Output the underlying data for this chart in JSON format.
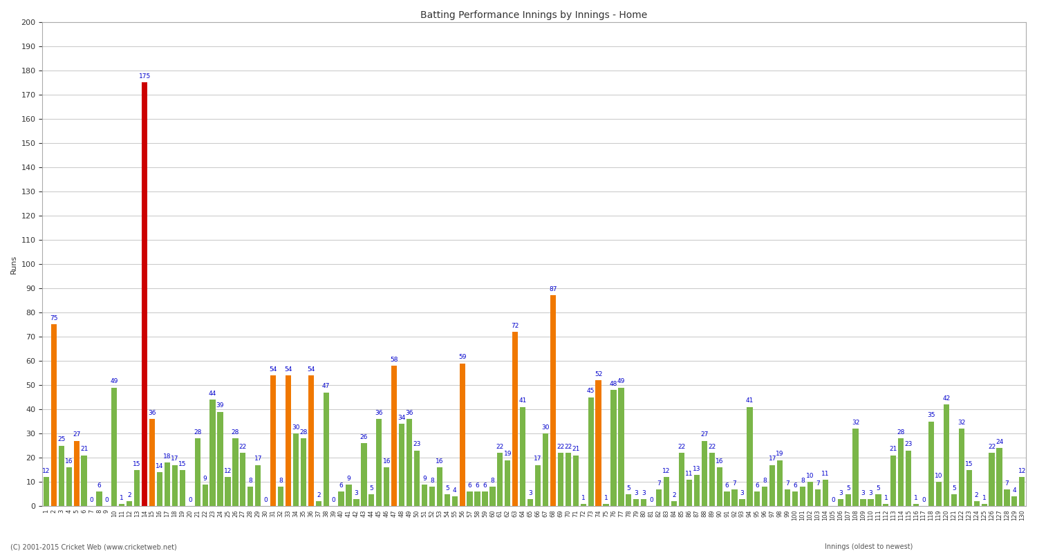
{
  "title": "Batting Performance Innings by Innings - Home",
  "ylabel": "Runs",
  "xlabel": "Innings (oldest to newest)",
  "footer": "(C) 2001-2015 Cricket Web (www.cricketweb.net)",
  "ylim": [
    0,
    200
  ],
  "yticks": [
    0,
    10,
    20,
    30,
    40,
    50,
    60,
    70,
    80,
    90,
    100,
    110,
    120,
    130,
    140,
    150,
    160,
    170,
    180,
    190,
    200
  ],
  "bar_data": [
    {
      "val": 12,
      "color": "#7ab648",
      "label": "12"
    },
    {
      "val": 75,
      "color": "#f07800",
      "label": "75"
    },
    {
      "val": 25,
      "color": "#7ab648",
      "label": "25"
    },
    {
      "val": 16,
      "color": "#7ab648",
      "label": "16"
    },
    {
      "val": 27,
      "color": "#f07800",
      "label": "27"
    },
    {
      "val": 21,
      "color": "#7ab648",
      "label": "21"
    },
    {
      "val": 0,
      "color": "#7ab648",
      "label": "0"
    },
    {
      "val": 6,
      "color": "#7ab648",
      "label": "6"
    },
    {
      "val": 0,
      "color": "#7ab648",
      "label": "0"
    },
    {
      "val": 49,
      "color": "#7ab648",
      "label": "49"
    },
    {
      "val": 1,
      "color": "#7ab648",
      "label": "1"
    },
    {
      "val": 2,
      "color": "#7ab648",
      "label": "2"
    },
    {
      "val": 15,
      "color": "#7ab648",
      "label": "15"
    },
    {
      "val": 175,
      "color": "#cc0000",
      "label": "175"
    },
    {
      "val": 36,
      "color": "#f07800",
      "label": "36"
    },
    {
      "val": 14,
      "color": "#7ab648",
      "label": "14"
    },
    {
      "val": 18,
      "color": "#7ab648",
      "label": "18"
    },
    {
      "val": 17,
      "color": "#7ab648",
      "label": "17"
    },
    {
      "val": 15,
      "color": "#7ab648",
      "label": "15"
    },
    {
      "val": 0,
      "color": "#7ab648",
      "label": "0"
    },
    {
      "val": 28,
      "color": "#7ab648",
      "label": "28"
    },
    {
      "val": 9,
      "color": "#7ab648",
      "label": "9"
    },
    {
      "val": 44,
      "color": "#7ab648",
      "label": "44"
    },
    {
      "val": 39,
      "color": "#7ab648",
      "label": "39"
    },
    {
      "val": 12,
      "color": "#7ab648",
      "label": "12"
    },
    {
      "val": 28,
      "color": "#7ab648",
      "label": "28"
    },
    {
      "val": 22,
      "color": "#7ab648",
      "label": "22"
    },
    {
      "val": 8,
      "color": "#7ab648",
      "label": "8"
    },
    {
      "val": 17,
      "color": "#7ab648",
      "label": "17"
    },
    {
      "val": 0,
      "color": "#7ab648",
      "label": "0"
    },
    {
      "val": 54,
      "color": "#f07800",
      "label": "54"
    },
    {
      "val": 8,
      "color": "#7ab648",
      "label": "8"
    },
    {
      "val": 54,
      "color": "#f07800",
      "label": "54"
    },
    {
      "val": 30,
      "color": "#7ab648",
      "label": "30"
    },
    {
      "val": 28,
      "color": "#7ab648",
      "label": "28"
    },
    {
      "val": 54,
      "color": "#f07800",
      "label": "54"
    },
    {
      "val": 2,
      "color": "#7ab648",
      "label": "2"
    },
    {
      "val": 47,
      "color": "#7ab648",
      "label": "47"
    },
    {
      "val": 0,
      "color": "#7ab648",
      "label": "0"
    },
    {
      "val": 6,
      "color": "#7ab648",
      "label": "6"
    },
    {
      "val": 9,
      "color": "#7ab648",
      "label": "9"
    },
    {
      "val": 3,
      "color": "#7ab648",
      "label": "3"
    },
    {
      "val": 26,
      "color": "#7ab648",
      "label": "26"
    },
    {
      "val": 5,
      "color": "#7ab648",
      "label": "5"
    },
    {
      "val": 36,
      "color": "#7ab648",
      "label": "36"
    },
    {
      "val": 16,
      "color": "#7ab648",
      "label": "16"
    },
    {
      "val": 58,
      "color": "#f07800",
      "label": "58"
    },
    {
      "val": 34,
      "color": "#7ab648",
      "label": "34"
    },
    {
      "val": 36,
      "color": "#7ab648",
      "label": "36"
    },
    {
      "val": 23,
      "color": "#7ab648",
      "label": "23"
    },
    {
      "val": 9,
      "color": "#7ab648",
      "label": "9"
    },
    {
      "val": 8,
      "color": "#7ab648",
      "label": "8"
    },
    {
      "val": 16,
      "color": "#7ab648",
      "label": "16"
    },
    {
      "val": 5,
      "color": "#7ab648",
      "label": "5"
    },
    {
      "val": 4,
      "color": "#7ab648",
      "label": "4"
    },
    {
      "val": 59,
      "color": "#f07800",
      "label": "59"
    },
    {
      "val": 6,
      "color": "#7ab648",
      "label": "6"
    },
    {
      "val": 6,
      "color": "#7ab648",
      "label": "6"
    },
    {
      "val": 6,
      "color": "#7ab648",
      "label": "6"
    },
    {
      "val": 8,
      "color": "#7ab648",
      "label": "8"
    },
    {
      "val": 22,
      "color": "#7ab648",
      "label": "22"
    },
    {
      "val": 19,
      "color": "#7ab648",
      "label": "19"
    },
    {
      "val": 72,
      "color": "#f07800",
      "label": "72"
    },
    {
      "val": 41,
      "color": "#7ab648",
      "label": "41"
    },
    {
      "val": 3,
      "color": "#7ab648",
      "label": "3"
    },
    {
      "val": 17,
      "color": "#7ab648",
      "label": "17"
    },
    {
      "val": 30,
      "color": "#7ab648",
      "label": "30"
    },
    {
      "val": 87,
      "color": "#f07800",
      "label": "87"
    },
    {
      "val": 22,
      "color": "#7ab648",
      "label": "22"
    },
    {
      "val": 22,
      "color": "#7ab648",
      "label": "22"
    },
    {
      "val": 21,
      "color": "#7ab648",
      "label": "21"
    },
    {
      "val": 1,
      "color": "#7ab648",
      "label": "1"
    },
    {
      "val": 45,
      "color": "#7ab648",
      "label": "45"
    },
    {
      "val": 52,
      "color": "#f07800",
      "label": "52"
    },
    {
      "val": 1,
      "color": "#7ab648",
      "label": "1"
    },
    {
      "val": 48,
      "color": "#7ab648",
      "label": "48"
    },
    {
      "val": 49,
      "color": "#7ab648",
      "label": "49"
    },
    {
      "val": 5,
      "color": "#7ab648",
      "label": "5"
    },
    {
      "val": 3,
      "color": "#7ab648",
      "label": "3"
    },
    {
      "val": 3,
      "color": "#7ab648",
      "label": "3"
    },
    {
      "val": 0,
      "color": "#7ab648",
      "label": "0"
    },
    {
      "val": 7,
      "color": "#7ab648",
      "label": "7"
    },
    {
      "val": 12,
      "color": "#7ab648",
      "label": "12"
    },
    {
      "val": 2,
      "color": "#7ab648",
      "label": "2"
    },
    {
      "val": 22,
      "color": "#7ab648",
      "label": "22"
    },
    {
      "val": 11,
      "color": "#7ab648",
      "label": "11"
    },
    {
      "val": 13,
      "color": "#7ab648",
      "label": "13"
    },
    {
      "val": 27,
      "color": "#7ab648",
      "label": "27"
    },
    {
      "val": 22,
      "color": "#7ab648",
      "label": "22"
    },
    {
      "val": 16,
      "color": "#7ab648",
      "label": "16"
    },
    {
      "val": 6,
      "color": "#7ab648",
      "label": "6"
    },
    {
      "val": 7,
      "color": "#7ab648",
      "label": "7"
    },
    {
      "val": 3,
      "color": "#7ab648",
      "label": "3"
    },
    {
      "val": 41,
      "color": "#7ab648",
      "label": "41"
    },
    {
      "val": 6,
      "color": "#7ab648",
      "label": "6"
    },
    {
      "val": 8,
      "color": "#7ab648",
      "label": "8"
    },
    {
      "val": 17,
      "color": "#7ab648",
      "label": "17"
    },
    {
      "val": 19,
      "color": "#7ab648",
      "label": "19"
    },
    {
      "val": 7,
      "color": "#7ab648",
      "label": "7"
    },
    {
      "val": 6,
      "color": "#7ab648",
      "label": "6"
    },
    {
      "val": 8,
      "color": "#7ab648",
      "label": "8"
    },
    {
      "val": 10,
      "color": "#7ab648",
      "label": "10"
    },
    {
      "val": 7,
      "color": "#7ab648",
      "label": "7"
    },
    {
      "val": 11,
      "color": "#7ab648",
      "label": "11"
    },
    {
      "val": 0,
      "color": "#7ab648",
      "label": "0"
    },
    {
      "val": 3,
      "color": "#7ab648",
      "label": "3"
    },
    {
      "val": 5,
      "color": "#7ab648",
      "label": "5"
    },
    {
      "val": 32,
      "color": "#7ab648",
      "label": "32"
    },
    {
      "val": 3,
      "color": "#7ab648",
      "label": "3"
    },
    {
      "val": 3,
      "color": "#7ab648",
      "label": "3"
    },
    {
      "val": 5,
      "color": "#7ab648",
      "label": "5"
    },
    {
      "val": 1,
      "color": "#7ab648",
      "label": "1"
    },
    {
      "val": 21,
      "color": "#7ab648",
      "label": "21"
    },
    {
      "val": 28,
      "color": "#7ab648",
      "label": "28"
    },
    {
      "val": 23,
      "color": "#7ab648",
      "label": "23"
    },
    {
      "val": 1,
      "color": "#7ab648",
      "label": "1"
    },
    {
      "val": 0,
      "color": "#7ab648",
      "label": "0"
    },
    {
      "val": 35,
      "color": "#7ab648",
      "label": "35"
    },
    {
      "val": 10,
      "color": "#7ab648",
      "label": "10"
    },
    {
      "val": 42,
      "color": "#7ab648",
      "label": "42"
    },
    {
      "val": 5,
      "color": "#7ab648",
      "label": "5"
    },
    {
      "val": 32,
      "color": "#7ab648",
      "label": "32"
    },
    {
      "val": 15,
      "color": "#7ab648",
      "label": "15"
    },
    {
      "val": 2,
      "color": "#7ab648",
      "label": "2"
    },
    {
      "val": 1,
      "color": "#7ab648",
      "label": "1"
    },
    {
      "val": 22,
      "color": "#7ab648",
      "label": "22"
    },
    {
      "val": 24,
      "color": "#7ab648",
      "label": "24"
    },
    {
      "val": 7,
      "color": "#7ab648",
      "label": "7"
    },
    {
      "val": 4,
      "color": "#7ab648",
      "label": "4"
    },
    {
      "val": 12,
      "color": "#7ab648",
      "label": "12"
    }
  ],
  "bg_color": "#ffffff",
  "grid_color": "#cccccc",
  "title_fontsize": 10,
  "label_fontsize": 6.5,
  "axis_fontsize": 8,
  "xtick_fontsize": 6
}
